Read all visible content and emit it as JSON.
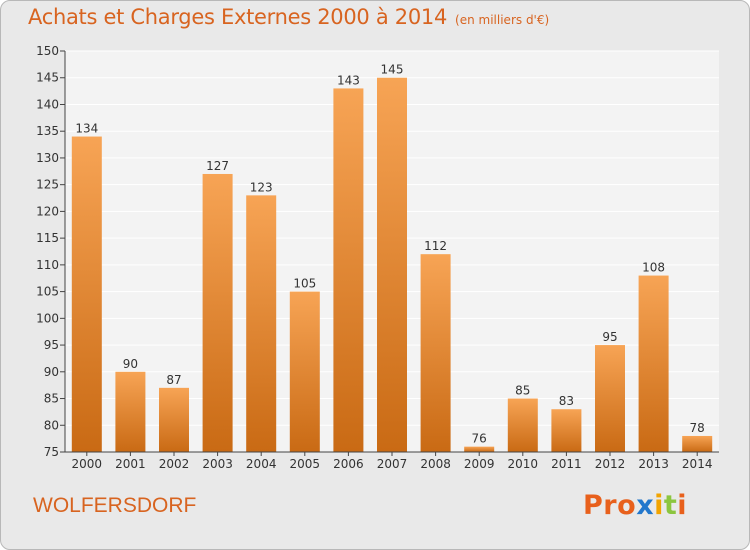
{
  "chart_data": {
    "type": "bar",
    "title": "Achats et Charges Externes 2000 à 2014",
    "unit_label": "(en milliers d'€)",
    "categories": [
      "2000",
      "2001",
      "2002",
      "2003",
      "2004",
      "2005",
      "2006",
      "2007",
      "2008",
      "2009",
      "2010",
      "2011",
      "2012",
      "2013",
      "2014"
    ],
    "values": [
      134,
      90,
      87,
      127,
      123,
      105,
      143,
      145,
      112,
      76,
      85,
      83,
      95,
      108,
      78
    ],
    "ylim": [
      75,
      150
    ],
    "yticks": [
      75,
      80,
      85,
      90,
      95,
      100,
      105,
      110,
      115,
      120,
      125,
      130,
      135,
      140,
      145,
      150
    ],
    "grid": true,
    "bar_color_light": "#f7a455",
    "bar_color_dark": "#c96a14",
    "grid_color": "#ffffff",
    "plot_bg": "#f3f3f3"
  },
  "location": "WOLFERSDORF",
  "brand": {
    "letters": [
      "P",
      "r",
      "o",
      "x",
      "i",
      "t",
      "i"
    ],
    "colors": [
      "#e8601c",
      "#e8601c",
      "#e8601c",
      "#2277cc",
      "#f2a400",
      "#8cc63f",
      "#e8601c"
    ]
  }
}
